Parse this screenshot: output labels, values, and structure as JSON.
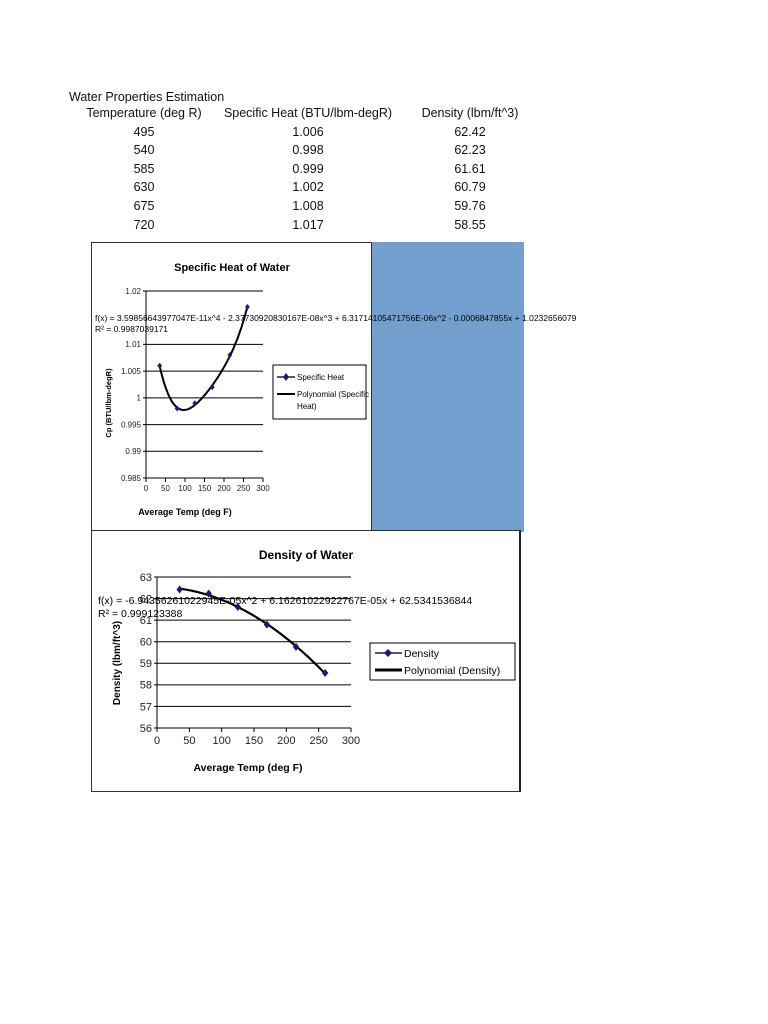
{
  "sheet": {
    "title": "Water Properties Estimation",
    "table": {
      "headers": [
        "Temperature (deg R)",
        "Specific Heat (BTU/lbm-degR)",
        "Density (lbm/ft^3)"
      ],
      "rows": [
        [
          "495",
          "1.006",
          "62.42"
        ],
        [
          "540",
          "0.998",
          "62.23"
        ],
        [
          "585",
          "0.999",
          "61.61"
        ],
        [
          "630",
          "1.002",
          "60.79"
        ],
        [
          "675",
          "1.008",
          "59.76"
        ],
        [
          "720",
          "1.017",
          "58.55"
        ]
      ]
    }
  },
  "colors": {
    "panel_blue": "#739fcf",
    "series_marker": "#1a1a6e",
    "trendline": "#000000"
  },
  "chart_data": [
    {
      "type": "scatter",
      "title": "Specific Heat of Water",
      "xlabel": "Average Temp (deg F)",
      "ylabel": "Cp (BTU/lbm-degR)",
      "x": [
        35,
        80,
        125,
        170,
        215,
        260
      ],
      "series": [
        {
          "name": "Specific Heat",
          "values": [
            1.006,
            0.998,
            0.999,
            1.002,
            1.008,
            1.017
          ]
        }
      ],
      "trendline": {
        "name": "Polynomial (Specific Heat)",
        "equation": "f(x) = 3.59856643977047E-11x^4 - 2.37730920830167E-08x^3 + 6.31714105471756E-06x^2 - 0.0006847855x + 1.0232656079",
        "r2": "R² = 0.9987039171"
      },
      "xlim": [
        0,
        300
      ],
      "ylim": [
        0.985,
        1.02
      ],
      "xticks": [
        "0",
        "50",
        "100",
        "150",
        "200",
        "250",
        "300"
      ],
      "yticks": [
        "0.985",
        "0.99",
        "0.995",
        "1",
        "1.005",
        "1.01",
        "1.015",
        "1.02"
      ],
      "ytick_labels_shown": [
        "1.02",
        "1.01",
        "1.005",
        "1",
        "0.995",
        "0.99",
        "0.985"
      ],
      "legend": [
        "Specific Heat",
        "Polynomial (Specific Heat)"
      ],
      "legend_position": "right",
      "grid": true
    },
    {
      "type": "scatter",
      "title": "Density of Water",
      "xlabel": "Average Temp (deg F)",
      "ylabel": "Density (lbm/ft^3)",
      "x": [
        35,
        80,
        125,
        170,
        215,
        260
      ],
      "series": [
        {
          "name": "Density",
          "values": [
            62.42,
            62.23,
            61.61,
            60.79,
            59.76,
            58.55
          ]
        }
      ],
      "trendline": {
        "name": "Polynomial (Density)",
        "equation": "f(x) = -6.94356261022945E-05x^2 + 6.16261022922767E-05x + 62.5341536844",
        "r2": "R² = 0.999123388"
      },
      "xlim": [
        0,
        300
      ],
      "ylim": [
        56,
        63
      ],
      "xticks": [
        "0",
        "50",
        "100",
        "150",
        "200",
        "250",
        "300"
      ],
      "yticks": [
        "56",
        "57",
        "58",
        "59",
        "60",
        "61",
        "62",
        "63"
      ],
      "legend": [
        "Density",
        "Polynomial (Density)"
      ],
      "legend_position": "right",
      "grid": true
    }
  ]
}
